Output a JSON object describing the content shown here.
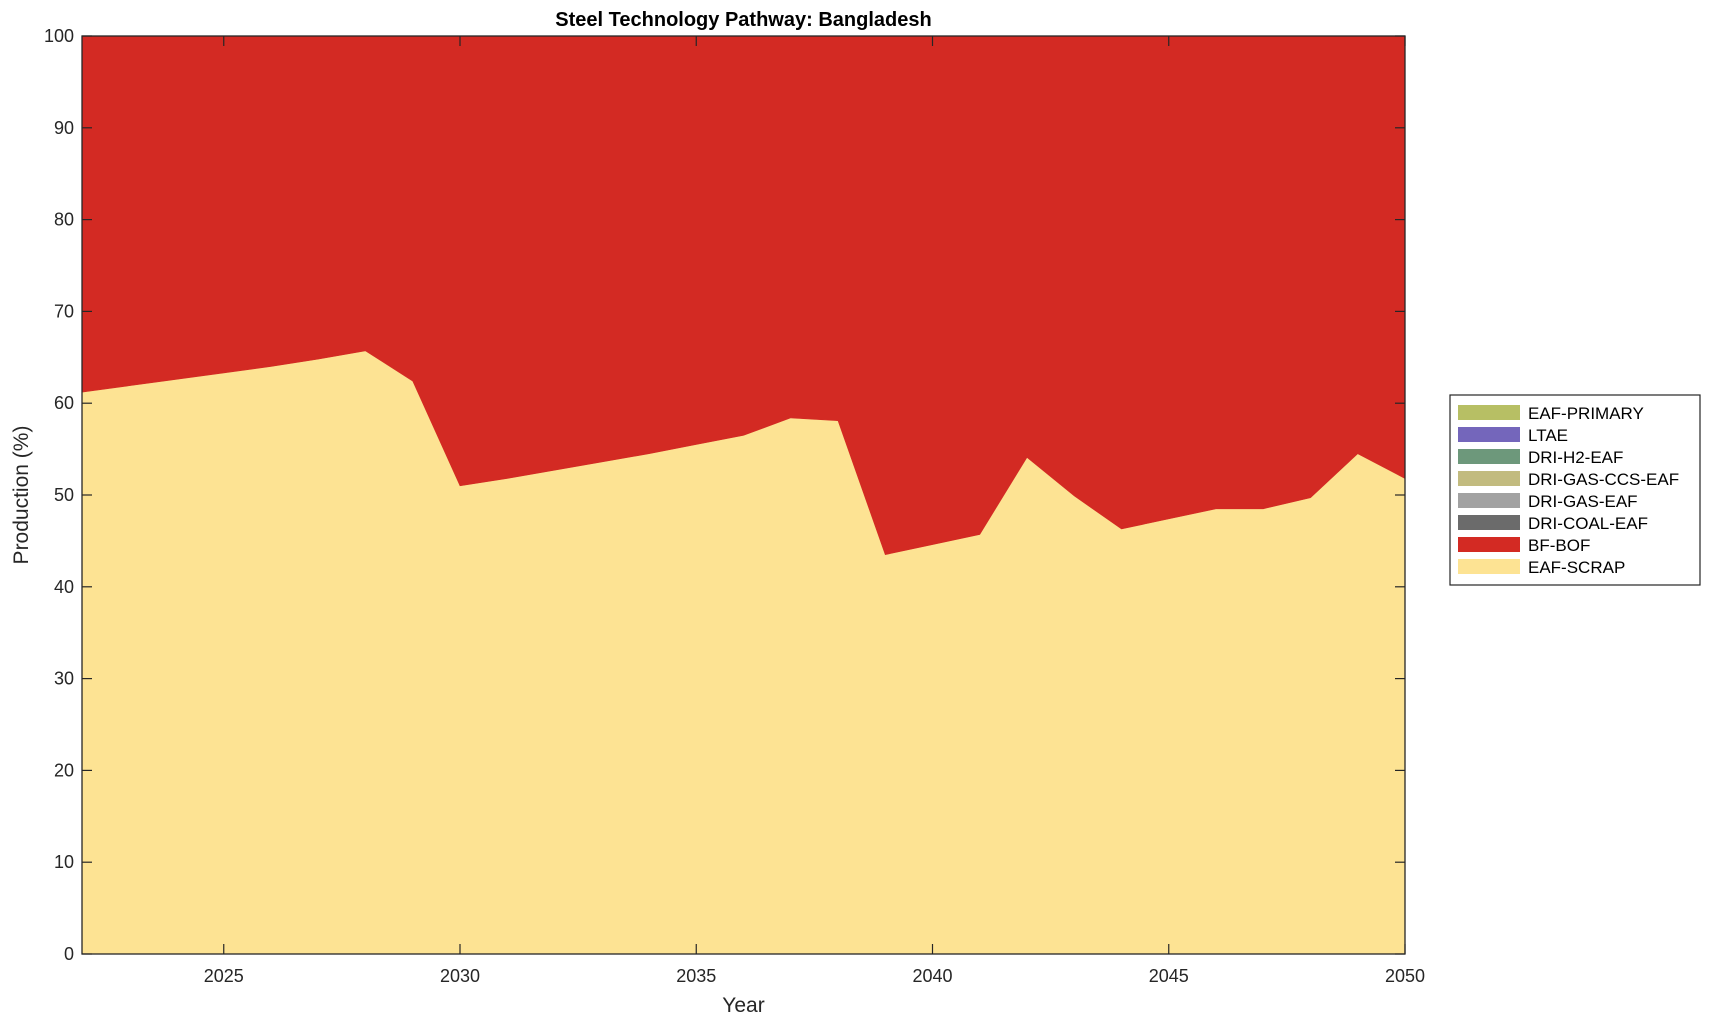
{
  "chart_data": {
    "type": "area",
    "stacked": true,
    "title": "Steel Technology Pathway: Bangladesh",
    "xlabel": "Year",
    "ylabel": "Production (%)",
    "xlim": [
      2022,
      2050
    ],
    "ylim": [
      0,
      100
    ],
    "xticks": [
      2025,
      2030,
      2035,
      2040,
      2045,
      2050
    ],
    "yticks": [
      0,
      10,
      20,
      30,
      40,
      50,
      60,
      70,
      80,
      90,
      100
    ],
    "legend_position": "right",
    "x": [
      2022,
      2023,
      2024,
      2025,
      2026,
      2027,
      2028,
      2029,
      2030,
      2031,
      2032,
      2033,
      2034,
      2035,
      2036,
      2037,
      2038,
      2039,
      2040,
      2041,
      2042,
      2043,
      2044,
      2045,
      2046,
      2047,
      2048,
      2049,
      2050
    ],
    "series": [
      {
        "name": "EAF-SCRAP",
        "color": "#fde393",
        "values": [
          61.2,
          61.9,
          62.6,
          63.3,
          64.0,
          64.8,
          65.7,
          62.4,
          51.0,
          51.8,
          52.7,
          53.6,
          54.5,
          55.5,
          56.5,
          58.4,
          58.1,
          43.5,
          44.6,
          45.7,
          54.1,
          49.9,
          46.3,
          47.4,
          48.5,
          48.5,
          49.7,
          54.5,
          51.8
        ]
      },
      {
        "name": "BF-BOF",
        "color": "#d32a23",
        "values": [
          38.8,
          38.1,
          37.4,
          36.7,
          36.0,
          35.2,
          34.3,
          37.6,
          49.0,
          48.2,
          47.3,
          46.4,
          45.5,
          44.5,
          43.5,
          41.6,
          41.9,
          56.5,
          55.4,
          54.3,
          45.9,
          50.1,
          53.7,
          52.6,
          51.5,
          51.5,
          50.3,
          45.5,
          48.2
        ]
      },
      {
        "name": "DRI-COAL-EAF",
        "color": "#6b6b6b",
        "values": [
          0,
          0,
          0,
          0,
          0,
          0,
          0,
          0,
          0,
          0,
          0,
          0,
          0,
          0,
          0,
          0,
          0,
          0,
          0,
          0,
          0,
          0,
          0,
          0,
          0,
          0,
          0,
          0,
          0
        ]
      },
      {
        "name": "DRI-GAS-EAF",
        "color": "#a2a2a2",
        "values": [
          0,
          0,
          0,
          0,
          0,
          0,
          0,
          0,
          0,
          0,
          0,
          0,
          0,
          0,
          0,
          0,
          0,
          0,
          0,
          0,
          0,
          0,
          0,
          0,
          0,
          0,
          0,
          0,
          0
        ]
      },
      {
        "name": "DRI-GAS-CCS-EAF",
        "color": "#c2bb7f",
        "values": [
          0,
          0,
          0,
          0,
          0,
          0,
          0,
          0,
          0,
          0,
          0,
          0,
          0,
          0,
          0,
          0,
          0,
          0,
          0,
          0,
          0,
          0,
          0,
          0,
          0,
          0,
          0,
          0,
          0
        ]
      },
      {
        "name": "DRI-H2-EAF",
        "color": "#6d987b",
        "values": [
          0,
          0,
          0,
          0,
          0,
          0,
          0,
          0,
          0,
          0,
          0,
          0,
          0,
          0,
          0,
          0,
          0,
          0,
          0,
          0,
          0,
          0,
          0,
          0,
          0,
          0,
          0,
          0,
          0
        ]
      },
      {
        "name": "LTAE",
        "color": "#7466bb",
        "values": [
          0,
          0,
          0,
          0,
          0,
          0,
          0,
          0,
          0,
          0,
          0,
          0,
          0,
          0,
          0,
          0,
          0,
          0,
          0,
          0,
          0,
          0,
          0,
          0,
          0,
          0,
          0,
          0,
          0
        ]
      },
      {
        "name": "EAF-PRIMARY",
        "color": "#b7bf64",
        "values": [
          0,
          0,
          0,
          0,
          0,
          0,
          0,
          0,
          0,
          0,
          0,
          0,
          0,
          0,
          0,
          0,
          0,
          0,
          0,
          0,
          0,
          0,
          0,
          0,
          0,
          0,
          0,
          0,
          0
        ]
      }
    ],
    "legend_order": [
      "EAF-PRIMARY",
      "LTAE",
      "DRI-H2-EAF",
      "DRI-GAS-CCS-EAF",
      "DRI-GAS-EAF",
      "DRI-COAL-EAF",
      "BF-BOF",
      "EAF-SCRAP"
    ]
  }
}
